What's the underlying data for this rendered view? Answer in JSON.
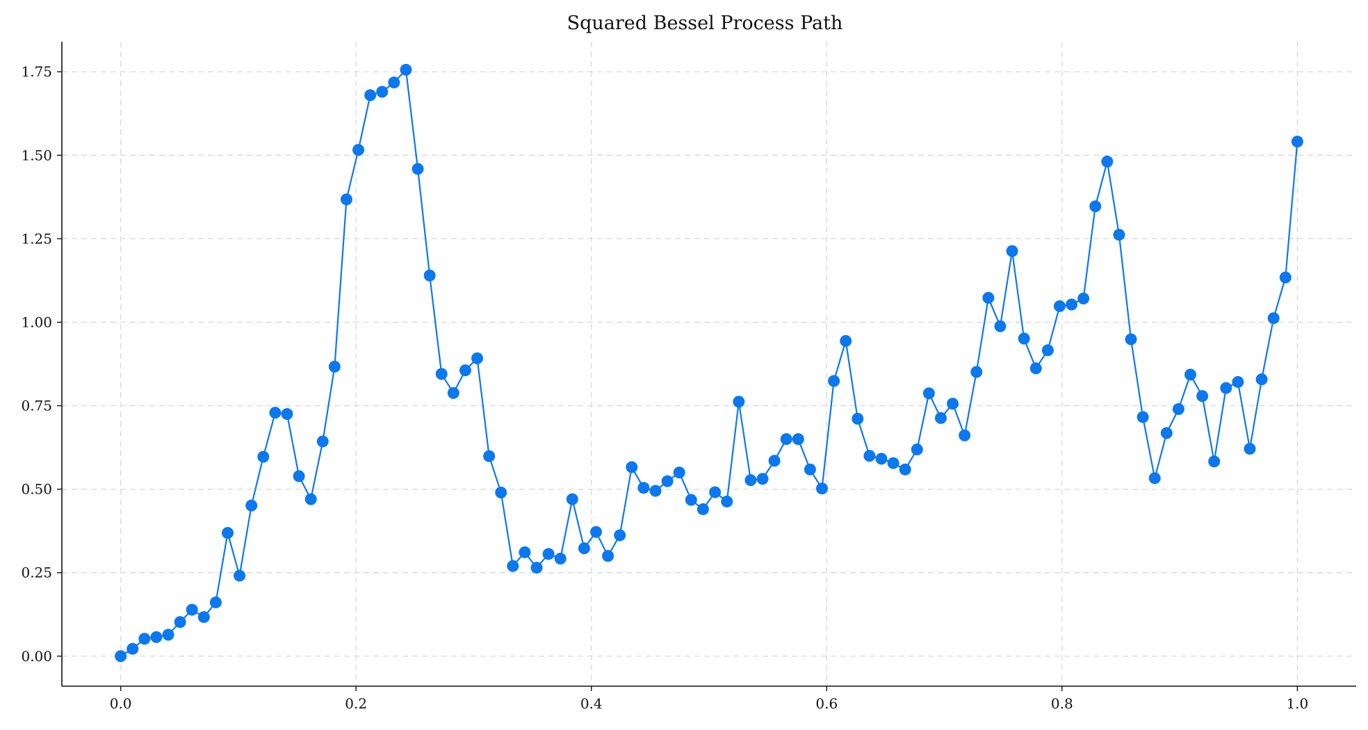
{
  "chart_data": {
    "type": "line",
    "title": "Squared Bessel Process Path",
    "xlabel": "",
    "ylabel": "",
    "xlim": [
      -0.05,
      1.05
    ],
    "ylim": [
      -0.09,
      1.84
    ],
    "xticks": [
      0.0,
      0.2,
      0.4,
      0.6,
      0.8,
      1.0
    ],
    "xtick_labels": [
      "0.0",
      "0.2",
      "0.4",
      "0.6",
      "0.8",
      "1.0"
    ],
    "yticks": [
      0.0,
      0.25,
      0.5,
      0.75,
      1.0,
      1.25,
      1.5,
      1.75
    ],
    "ytick_labels": [
      "0.00",
      "0.25",
      "0.50",
      "0.75",
      "1.00",
      "1.25",
      "1.50",
      "1.75"
    ],
    "grid": true,
    "marker": "circle",
    "colors": {
      "line": "#0b78f0",
      "marker": "#0b78f0"
    },
    "series": [
      {
        "x": [
          0.0,
          0.0101,
          0.0202,
          0.0303,
          0.0404,
          0.0505,
          0.0606,
          0.0707,
          0.0808,
          0.0909,
          0.101,
          0.1111,
          0.1212,
          0.1313,
          0.1414,
          0.1515,
          0.1616,
          0.1717,
          0.1818,
          0.1919,
          0.202,
          0.2121,
          0.2222,
          0.2323,
          0.2424,
          0.2525,
          0.2626,
          0.2727,
          0.2828,
          0.2929,
          0.303,
          0.3131,
          0.3232,
          0.3333,
          0.3434,
          0.3535,
          0.3636,
          0.3737,
          0.3838,
          0.3939,
          0.404,
          0.4141,
          0.4242,
          0.4343,
          0.4444,
          0.4545,
          0.4646,
          0.4747,
          0.4848,
          0.4949,
          0.5051,
          0.5152,
          0.5253,
          0.5354,
          0.5455,
          0.5556,
          0.5657,
          0.5758,
          0.5859,
          0.596,
          0.6061,
          0.6162,
          0.6263,
          0.6364,
          0.6465,
          0.6566,
          0.6667,
          0.6768,
          0.6869,
          0.697,
          0.7071,
          0.7172,
          0.7273,
          0.7374,
          0.7475,
          0.7576,
          0.7677,
          0.7778,
          0.7879,
          0.798,
          0.8081,
          0.8182,
          0.8283,
          0.8384,
          0.8485,
          0.8586,
          0.8687,
          0.8788,
          0.8889,
          0.899,
          0.9091,
          0.9192,
          0.9293,
          0.9394,
          0.9495,
          0.9596,
          0.9697,
          0.9798,
          0.9899,
          1.0
        ],
        "y": [
          0.0,
          0.022,
          0.052,
          0.057,
          0.064,
          0.102,
          0.139,
          0.117,
          0.161,
          0.369,
          0.241,
          0.451,
          0.597,
          0.729,
          0.725,
          0.539,
          0.47,
          0.643,
          0.867,
          1.368,
          1.516,
          1.68,
          1.69,
          1.718,
          1.756,
          1.459,
          1.14,
          0.845,
          0.788,
          0.856,
          0.892,
          0.599,
          0.49,
          0.27,
          0.311,
          0.265,
          0.306,
          0.292,
          0.47,
          0.323,
          0.372,
          0.3,
          0.362,
          0.566,
          0.504,
          0.495,
          0.524,
          0.55,
          0.468,
          0.44,
          0.491,
          0.463,
          0.762,
          0.527,
          0.531,
          0.585,
          0.65,
          0.65,
          0.559,
          0.502,
          0.824,
          0.944,
          0.711,
          0.6,
          0.591,
          0.578,
          0.559,
          0.619,
          0.787,
          0.713,
          0.756,
          0.661,
          0.851,
          1.073,
          0.988,
          1.213,
          0.951,
          0.862,
          0.916,
          1.048,
          1.053,
          1.071,
          1.347,
          1.481,
          1.262,
          0.949,
          0.716,
          0.533,
          0.668,
          0.74,
          0.843,
          0.779,
          0.583,
          0.803,
          0.821,
          0.621,
          0.829,
          1.012,
          1.134,
          1.541
        ]
      }
    ]
  }
}
